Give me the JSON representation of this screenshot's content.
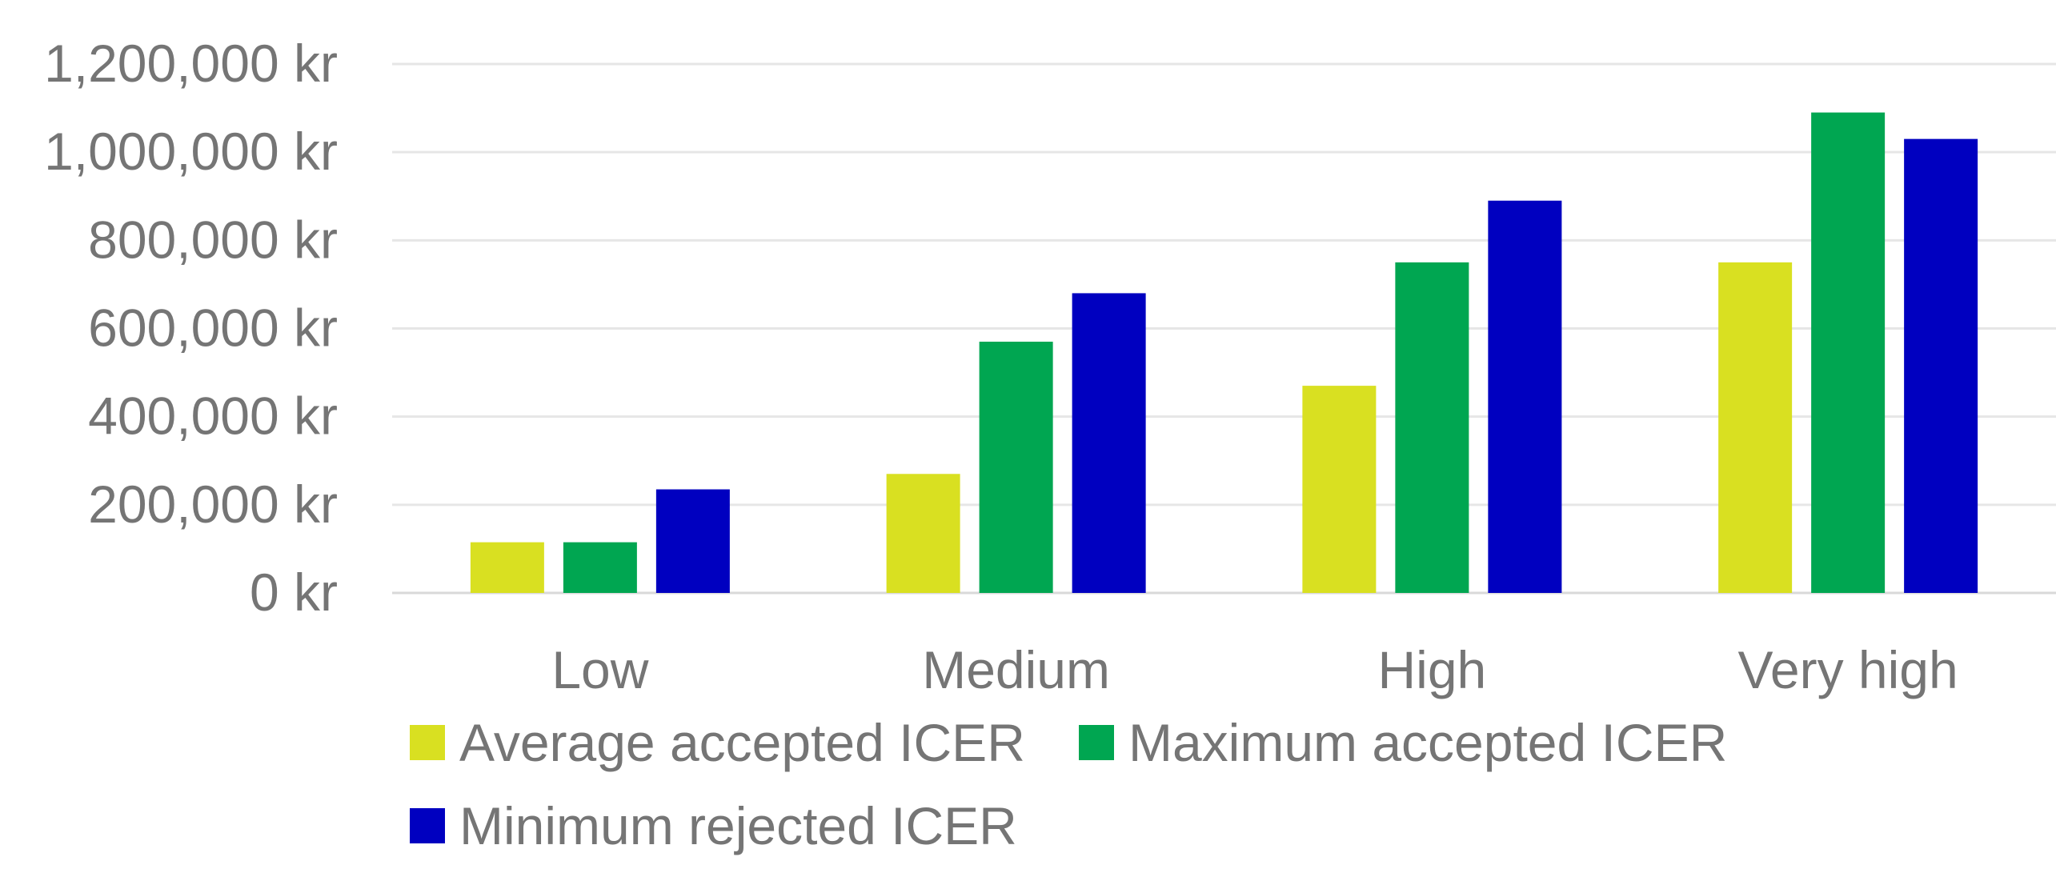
{
  "chart_data": {
    "type": "bar",
    "categories": [
      "Low",
      "Medium",
      "High",
      "Very high"
    ],
    "series": [
      {
        "name": "Average accepted ICER",
        "color": "#d9e021",
        "values": [
          115000,
          270000,
          470000,
          750000
        ]
      },
      {
        "name": "Maximum accepted ICER",
        "color": "#00a651",
        "values": [
          115000,
          570000,
          750000,
          1090000
        ]
      },
      {
        "name": "Minimum rejected ICER",
        "color": "#0000c0",
        "values": [
          235000,
          680000,
          890000,
          1030000
        ]
      }
    ],
    "yticks": [
      "0 kr",
      "200,000 kr",
      "400,000 kr",
      "600,000 kr",
      "800,000 kr",
      "1,000,000 kr",
      "1,200,000 kr"
    ],
    "ylim": [
      0,
      1200000
    ],
    "grid": true,
    "legend_position": "bottom"
  }
}
